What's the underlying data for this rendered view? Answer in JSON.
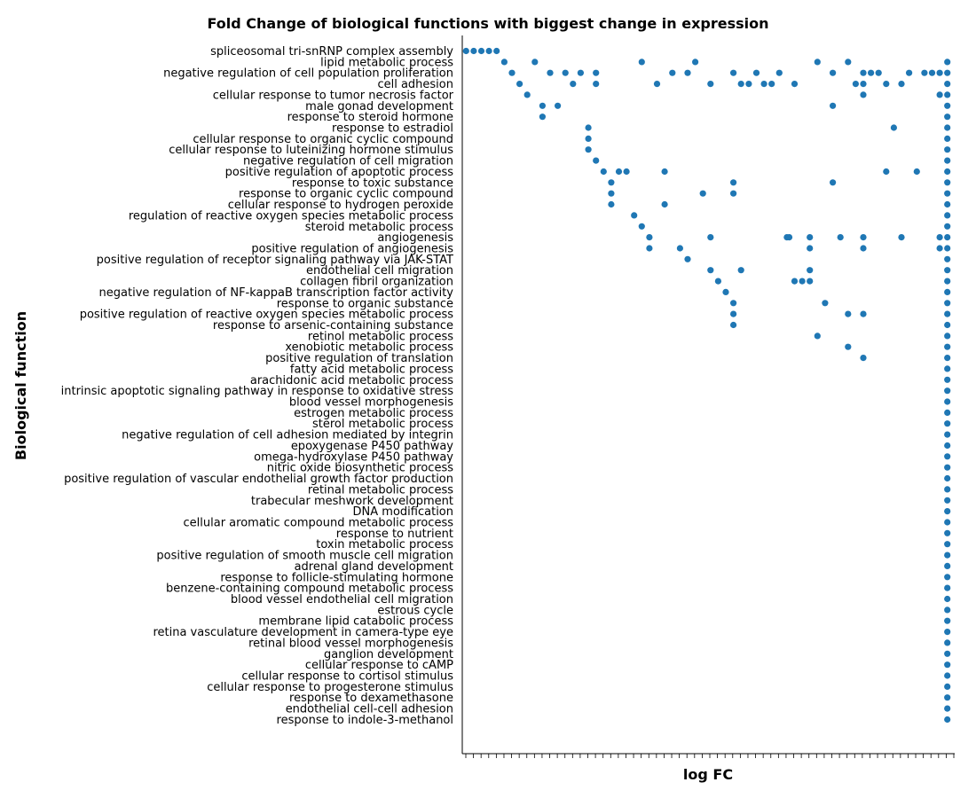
{
  "chart_data": {
    "type": "scatter",
    "title": "Fold Change of biological functions with biggest change in expression",
    "xlabel": "log FC",
    "ylabel": "Biological function",
    "x_tick_count": 64,
    "xlim": [
      0,
      64
    ],
    "marker_color": "#1f77b4",
    "categories": [
      "spliceosomal tri-snRNP complex assembly",
      "lipid metabolic process",
      "negative regulation of cell population proliferation",
      "cell adhesion",
      "cellular response to tumor necrosis factor",
      "male gonad development",
      "response to steroid hormone",
      "response to estradiol",
      "cellular response to organic cyclic compound",
      "cellular response to luteinizing hormone stimulus",
      "negative regulation of cell migration",
      "positive regulation of apoptotic process",
      "response to toxic substance",
      "response to organic cyclic compound",
      "cellular response to hydrogen peroxide",
      "regulation of reactive oxygen species metabolic process",
      "steroid metabolic process",
      "angiogenesis",
      "positive regulation of angiogenesis",
      "positive regulation of receptor signaling pathway via JAK-STAT",
      "endothelial cell migration",
      "collagen fibril organization",
      "negative regulation of NF-kappaB transcription factor activity",
      "response to organic substance",
      "positive regulation of reactive oxygen species metabolic process",
      "response to arsenic-containing substance",
      "retinol metabolic process",
      "xenobiotic metabolic process",
      "positive regulation of translation",
      "fatty acid metabolic process",
      "arachidonic acid metabolic process",
      "intrinsic apoptotic signaling pathway in response to oxidative stress",
      "blood vessel morphogenesis",
      "estrogen metabolic process",
      "sterol metabolic process",
      "negative regulation of cell adhesion mediated by integrin",
      "epoxygenase P450 pathway",
      "omega-hydroxylase P450 pathway",
      "nitric oxide biosynthetic process",
      "positive regulation of vascular endothelial growth factor production",
      "retinal metabolic process",
      "trabecular meshwork development",
      "DNA modification",
      "cellular aromatic compound metabolic process",
      "response to nutrient",
      "toxin metabolic process",
      "positive regulation of smooth muscle cell migration",
      "adrenal gland development",
      "response to follicle-stimulating hormone",
      "benzene-containing compound metabolic process",
      "blood vessel endothelial cell migration",
      "estrous cycle",
      "membrane lipid catabolic process",
      "retina vasculature development in camera-type eye",
      "retinal blood vessel morphogenesis",
      "ganglion development",
      "cellular response to cAMP",
      "cellular response to cortisol stimulus",
      "cellular response to progesterone stimulus",
      "response to dexamethasone",
      "endothelial cell-cell adhesion",
      "response to indole-3-methanol"
    ],
    "points": [
      [
        0.5,
        0
      ],
      [
        1.5,
        0
      ],
      [
        2.5,
        0
      ],
      [
        3.5,
        0
      ],
      [
        4.5,
        0
      ],
      [
        5.5,
        1
      ],
      [
        9.5,
        1
      ],
      [
        23.5,
        1
      ],
      [
        30.5,
        1
      ],
      [
        46.5,
        1
      ],
      [
        50.5,
        1
      ],
      [
        63.5,
        1
      ],
      [
        6.5,
        2
      ],
      [
        11.5,
        2
      ],
      [
        13.5,
        2
      ],
      [
        15.5,
        2
      ],
      [
        17.5,
        2
      ],
      [
        27.5,
        2
      ],
      [
        29.5,
        2
      ],
      [
        35.5,
        2
      ],
      [
        38.5,
        2
      ],
      [
        41.5,
        2
      ],
      [
        48.5,
        2
      ],
      [
        52.5,
        2
      ],
      [
        53.5,
        2
      ],
      [
        54.5,
        2
      ],
      [
        58.5,
        2
      ],
      [
        60.5,
        2
      ],
      [
        61.5,
        2
      ],
      [
        62.5,
        2
      ],
      [
        63.5,
        2
      ],
      [
        7.5,
        3
      ],
      [
        14.5,
        3
      ],
      [
        17.5,
        3
      ],
      [
        25.5,
        3
      ],
      [
        32.5,
        3
      ],
      [
        36.5,
        3
      ],
      [
        37.5,
        3
      ],
      [
        39.5,
        3
      ],
      [
        40.5,
        3
      ],
      [
        43.5,
        3
      ],
      [
        51.5,
        3
      ],
      [
        52.5,
        3
      ],
      [
        55.5,
        3
      ],
      [
        57.5,
        3
      ],
      [
        63.5,
        3
      ],
      [
        8.5,
        4
      ],
      [
        52.5,
        4
      ],
      [
        62.5,
        4
      ],
      [
        63.5,
        4
      ],
      [
        10.5,
        5
      ],
      [
        12.5,
        5
      ],
      [
        48.5,
        5
      ],
      [
        63.5,
        5
      ],
      [
        10.5,
        6
      ],
      [
        63.5,
        6
      ],
      [
        16.5,
        7
      ],
      [
        56.5,
        7
      ],
      [
        63.5,
        7
      ],
      [
        16.5,
        8
      ],
      [
        63.5,
        8
      ],
      [
        16.5,
        9
      ],
      [
        63.5,
        9
      ],
      [
        17.5,
        10
      ],
      [
        63.5,
        10
      ],
      [
        18.5,
        11
      ],
      [
        20.5,
        11
      ],
      [
        21.5,
        11
      ],
      [
        26.5,
        11
      ],
      [
        55.5,
        11
      ],
      [
        59.5,
        11
      ],
      [
        63.5,
        11
      ],
      [
        19.5,
        12
      ],
      [
        35.5,
        12
      ],
      [
        48.5,
        12
      ],
      [
        63.5,
        12
      ],
      [
        19.5,
        13
      ],
      [
        31.5,
        13
      ],
      [
        35.5,
        13
      ],
      [
        63.5,
        13
      ],
      [
        19.5,
        14
      ],
      [
        26.5,
        14
      ],
      [
        63.5,
        14
      ],
      [
        22.5,
        15
      ],
      [
        63.5,
        15
      ],
      [
        23.5,
        16
      ],
      [
        63.5,
        16
      ],
      [
        24.5,
        17
      ],
      [
        32.5,
        17
      ],
      [
        42.5,
        17
      ],
      [
        42.8,
        17
      ],
      [
        45.5,
        17
      ],
      [
        49.5,
        17
      ],
      [
        52.5,
        17
      ],
      [
        57.5,
        17
      ],
      [
        62.5,
        17
      ],
      [
        63.5,
        17
      ],
      [
        24.5,
        18
      ],
      [
        28.5,
        18
      ],
      [
        45.5,
        18
      ],
      [
        52.5,
        18
      ],
      [
        62.5,
        18
      ],
      [
        63.5,
        18
      ],
      [
        29.5,
        19
      ],
      [
        63.5,
        19
      ],
      [
        32.5,
        20
      ],
      [
        36.5,
        20
      ],
      [
        45.5,
        20
      ],
      [
        63.5,
        20
      ],
      [
        33.5,
        21
      ],
      [
        43.5,
        21
      ],
      [
        44.5,
        21
      ],
      [
        45.5,
        21
      ],
      [
        63.5,
        21
      ],
      [
        34.5,
        22
      ],
      [
        63.5,
        22
      ],
      [
        35.5,
        23
      ],
      [
        47.5,
        23
      ],
      [
        63.5,
        23
      ],
      [
        35.5,
        24
      ],
      [
        50.5,
        24
      ],
      [
        52.5,
        24
      ],
      [
        63.5,
        24
      ],
      [
        35.5,
        25
      ],
      [
        63.5,
        25
      ],
      [
        46.5,
        26
      ],
      [
        63.5,
        26
      ],
      [
        50.5,
        27
      ],
      [
        63.5,
        27
      ],
      [
        52.5,
        28
      ],
      [
        63.5,
        28
      ],
      [
        63.5,
        29
      ],
      [
        63.5,
        30
      ],
      [
        63.5,
        31
      ],
      [
        63.5,
        32
      ],
      [
        63.5,
        33
      ],
      [
        63.5,
        34
      ],
      [
        63.5,
        35
      ],
      [
        63.5,
        36
      ],
      [
        63.5,
        37
      ],
      [
        63.5,
        38
      ],
      [
        63.5,
        39
      ],
      [
        63.5,
        40
      ],
      [
        63.5,
        41
      ],
      [
        63.5,
        42
      ],
      [
        63.5,
        43
      ],
      [
        63.5,
        44
      ],
      [
        63.5,
        45
      ],
      [
        63.5,
        46
      ],
      [
        63.5,
        47
      ],
      [
        63.5,
        48
      ],
      [
        63.5,
        49
      ],
      [
        63.5,
        50
      ],
      [
        63.5,
        51
      ],
      [
        63.5,
        52
      ],
      [
        63.5,
        53
      ],
      [
        63.5,
        54
      ],
      [
        63.5,
        55
      ],
      [
        63.5,
        56
      ],
      [
        63.5,
        57
      ],
      [
        63.5,
        58
      ],
      [
        63.5,
        59
      ],
      [
        63.5,
        60
      ],
      [
        63.5,
        61
      ]
    ]
  }
}
